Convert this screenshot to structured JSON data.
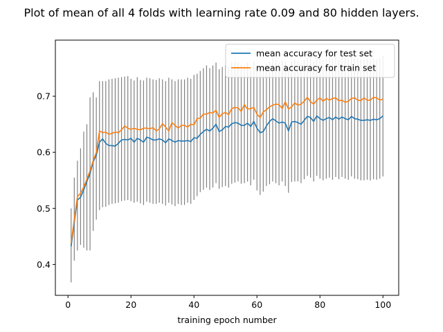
{
  "chart_data": {
    "type": "line",
    "title": "Plot of mean of all 4 folds with learning rate 0.09 and 80 hidden layers.",
    "xlabel": "training epoch number",
    "ylabel": "",
    "xlim": [
      -4,
      105
    ],
    "ylim": [
      0.345,
      0.8
    ],
    "xticks": [
      0,
      20,
      40,
      60,
      80,
      100
    ],
    "yticks": [
      0.4,
      0.5,
      0.6,
      0.7
    ],
    "legend_position": "top-right",
    "grid": false,
    "x": [
      1,
      2,
      3,
      4,
      5,
      6,
      7,
      8,
      9,
      10,
      11,
      12,
      13,
      14,
      15,
      16,
      17,
      18,
      19,
      20,
      21,
      22,
      23,
      24,
      25,
      26,
      27,
      28,
      29,
      30,
      31,
      32,
      33,
      34,
      35,
      36,
      37,
      38,
      39,
      40,
      41,
      42,
      43,
      44,
      45,
      46,
      47,
      48,
      49,
      50,
      51,
      52,
      53,
      54,
      55,
      56,
      57,
      58,
      59,
      60,
      61,
      62,
      63,
      64,
      65,
      66,
      67,
      68,
      69,
      70,
      71,
      72,
      73,
      74,
      75,
      76,
      77,
      78,
      79,
      80,
      81,
      82,
      83,
      84,
      85,
      86,
      87,
      88,
      89,
      90,
      91,
      92,
      93,
      94,
      95,
      96,
      97,
      98,
      99,
      100
    ],
    "series": [
      {
        "name": "mean accuracy for test set",
        "color": "#1f77b4",
        "values": [
          0.432,
          0.475,
          0.515,
          0.52,
          0.533,
          0.548,
          0.562,
          0.583,
          0.595,
          0.618,
          0.624,
          0.616,
          0.612,
          0.612,
          0.611,
          0.616,
          0.622,
          0.623,
          0.622,
          0.625,
          0.618,
          0.625,
          0.622,
          0.618,
          0.627,
          0.625,
          0.622,
          0.622,
          0.624,
          0.622,
          0.617,
          0.624,
          0.621,
          0.618,
          0.621,
          0.62,
          0.62,
          0.621,
          0.619,
          0.626,
          0.625,
          0.632,
          0.637,
          0.641,
          0.638,
          0.643,
          0.65,
          0.637,
          0.64,
          0.646,
          0.645,
          0.651,
          0.653,
          0.652,
          0.648,
          0.648,
          0.652,
          0.646,
          0.655,
          0.643,
          0.635,
          0.637,
          0.647,
          0.655,
          0.66,
          0.656,
          0.652,
          0.654,
          0.652,
          0.638,
          0.654,
          0.655,
          0.653,
          0.65,
          0.657,
          0.664,
          0.662,
          0.655,
          0.665,
          0.66,
          0.657,
          0.66,
          0.662,
          0.658,
          0.663,
          0.659,
          0.663,
          0.66,
          0.658,
          0.664,
          0.66,
          0.659,
          0.657,
          0.657,
          0.658,
          0.657,
          0.659,
          0.658,
          0.66,
          0.665
        ]
      },
      {
        "name": "mean accuracy for train set",
        "color": "#ff7f0e",
        "values": [
          0.438,
          0.48,
          0.521,
          0.527,
          0.538,
          0.552,
          0.567,
          0.585,
          0.6,
          0.638,
          0.635,
          0.636,
          0.632,
          0.634,
          0.636,
          0.635,
          0.64,
          0.647,
          0.643,
          0.641,
          0.643,
          0.641,
          0.64,
          0.643,
          0.643,
          0.642,
          0.644,
          0.638,
          0.642,
          0.651,
          0.645,
          0.638,
          0.653,
          0.648,
          0.643,
          0.648,
          0.648,
          0.645,
          0.65,
          0.649,
          0.66,
          0.661,
          0.668,
          0.668,
          0.671,
          0.67,
          0.675,
          0.662,
          0.669,
          0.671,
          0.667,
          0.678,
          0.68,
          0.679,
          0.673,
          0.685,
          0.677,
          0.678,
          0.68,
          0.668,
          0.662,
          0.672,
          0.676,
          0.681,
          0.684,
          0.686,
          0.685,
          0.678,
          0.69,
          0.677,
          0.681,
          0.688,
          0.684,
          0.686,
          0.691,
          0.698,
          0.69,
          0.686,
          0.693,
          0.697,
          0.691,
          0.696,
          0.693,
          0.696,
          0.697,
          0.692,
          0.693,
          0.689,
          0.691,
          0.696,
          0.697,
          0.693,
          0.692,
          0.697,
          0.693,
          0.693,
          0.698,
          0.697,
          0.693,
          0.695
        ]
      }
    ],
    "error_bars": {
      "color": "#808080",
      "lower": [
        0.368,
        0.407,
        0.425,
        0.435,
        0.43,
        0.425,
        0.425,
        0.46,
        0.48,
        0.497,
        0.502,
        0.503,
        0.506,
        0.508,
        0.509,
        0.51,
        0.513,
        0.514,
        0.515,
        0.513,
        0.51,
        0.512,
        0.509,
        0.506,
        0.512,
        0.51,
        0.508,
        0.508,
        0.51,
        0.508,
        0.505,
        0.51,
        0.507,
        0.504,
        0.508,
        0.506,
        0.506,
        0.51,
        0.508,
        0.515,
        0.522,
        0.529,
        0.533,
        0.537,
        0.533,
        0.537,
        0.545,
        0.535,
        0.538,
        0.54,
        0.537,
        0.544,
        0.546,
        0.548,
        0.544,
        0.545,
        0.548,
        0.541,
        0.551,
        0.532,
        0.524,
        0.53,
        0.54,
        0.543,
        0.548,
        0.545,
        0.541,
        0.548,
        0.54,
        0.528,
        0.547,
        0.548,
        0.548,
        0.545,
        0.552,
        0.558,
        0.555,
        0.548,
        0.558,
        0.553,
        0.55,
        0.553,
        0.555,
        0.551,
        0.556,
        0.552,
        0.556,
        0.553,
        0.551,
        0.557,
        0.553,
        0.552,
        0.55,
        0.55,
        0.551,
        0.55,
        0.552,
        0.551,
        0.553,
        0.557
      ],
      "upper": [
        0.5,
        0.555,
        0.585,
        0.607,
        0.637,
        0.65,
        0.698,
        0.707,
        0.698,
        0.727,
        0.727,
        0.727,
        0.73,
        0.731,
        0.732,
        0.733,
        0.734,
        0.735,
        0.736,
        0.731,
        0.728,
        0.734,
        0.729,
        0.728,
        0.733,
        0.732,
        0.73,
        0.729,
        0.732,
        0.73,
        0.727,
        0.733,
        0.73,
        0.727,
        0.73,
        0.73,
        0.73,
        0.733,
        0.731,
        0.738,
        0.74,
        0.745,
        0.75,
        0.755,
        0.75,
        0.755,
        0.76,
        0.748,
        0.752,
        0.755,
        0.752,
        0.76,
        0.762,
        0.76,
        0.755,
        0.755,
        0.76,
        0.752,
        0.762,
        0.755,
        0.75,
        0.752,
        0.758,
        0.762,
        0.768,
        0.765,
        0.76,
        0.765,
        0.762,
        0.75,
        0.762,
        0.765,
        0.762,
        0.758,
        0.765,
        0.77,
        0.77,
        0.762,
        0.772,
        0.768,
        0.765,
        0.768,
        0.77,
        0.766,
        0.771,
        0.766,
        0.771,
        0.768,
        0.766,
        0.772,
        0.768,
        0.767,
        0.765,
        0.765,
        0.766,
        0.765,
        0.767,
        0.766,
        0.768,
        0.772
      ]
    }
  }
}
